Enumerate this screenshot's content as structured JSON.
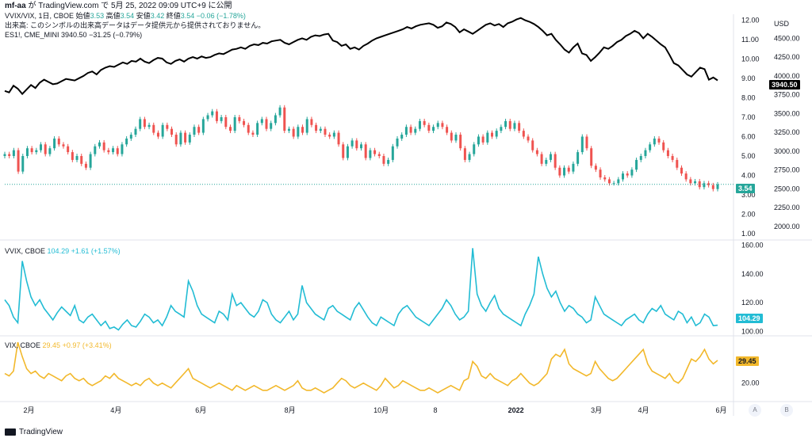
{
  "header": {
    "author": "mf-aa",
    "published": "が TradingView.com で 5月 25, 2022 09:09 UTC+9 に公開"
  },
  "panes": {
    "main": {
      "legend1": {
        "sym": "VVIX/VIX, 1日, CBOE",
        "o_lbl": "始値",
        "o": "3.53",
        "h_lbl": "高値",
        "h": "3.54",
        "l_lbl": "安値",
        "l": "3.42",
        "c_lbl": "終値",
        "c": "3.54",
        "chg": "−0.06 (−1.78%)"
      },
      "legend2": "出来高: このシンボルの出来高データはデータ提供元から提供されておりません。",
      "legend3": {
        "sym": "ES1!, CME_MINI",
        "val": "3940.50",
        "chg": "−31.25 (−0.79%)"
      }
    },
    "vvix": {
      "sym": "VVIX, CBOE",
      "val": "104.29",
      "chg": "+1.61 (+1.57%)"
    },
    "vix": {
      "sym": "VIX, CBOE",
      "val": "29.45",
      "chg": "+0.97 (+3.41%)"
    }
  },
  "currency": "USD",
  "badges": {
    "es": "3940.50",
    "ratio": "3.54",
    "vvix": "104.29",
    "vix": "29.45"
  },
  "colors": {
    "up": "#26a69a",
    "down": "#ef5350",
    "es": "#000000",
    "vvix": "#22bcd4",
    "vix": "#f2b82b",
    "ratio_line": "#26a69a"
  },
  "footer": "TradingView",
  "buttons": {
    "a": "A",
    "b": "B"
  },
  "chart_data": [
    {
      "type": "candlestick",
      "title": "VVIX/VIX, 1日, CBOE",
      "x_ticks": [
        "2月",
        "4月",
        "6月",
        "8月",
        "10月",
        "8",
        "2022",
        "3月",
        "4月",
        "6月"
      ],
      "y_ticks_left_scale": [
        "12.00",
        "11.00",
        "10.00",
        "9.00",
        "8.00",
        "7.00",
        "6.00",
        "5.00",
        "4.00",
        "3.00",
        "2.00",
        "1.00"
      ],
      "ylim": [
        0.8,
        12.3
      ],
      "close": [
        5.1,
        5.0,
        5.3,
        4.2,
        5.0,
        5.4,
        5.2,
        5.3,
        5.6,
        5.1,
        5.4,
        5.9,
        5.6,
        5.5,
        5.2,
        4.8,
        5.0,
        4.6,
        4.4,
        5.1,
        5.5,
        5.7,
        5.3,
        5.2,
        5.4,
        5.1,
        5.6,
        5.9,
        6.1,
        6.4,
        6.9,
        6.5,
        6.6,
        6.2,
        6.0,
        6.6,
        6.4,
        6.1,
        5.6,
        6.2,
        5.7,
        6.1,
        6.5,
        6.2,
        6.9,
        7.1,
        7.3,
        6.8,
        7.0,
        6.5,
        6.3,
        7.0,
        6.8,
        6.6,
        6.2,
        6.1,
        6.7,
        6.9,
        6.4,
        6.7,
        7.1,
        7.5,
        6.3,
        6.4,
        6.0,
        6.5,
        6.2,
        6.9,
        6.6,
        6.3,
        6.4,
        6.1,
        6.0,
        6.2,
        5.6,
        4.9,
        5.5,
        5.8,
        5.4,
        5.6,
        4.9,
        5.3,
        5.1,
        5.0,
        4.6,
        4.8,
        5.5,
        5.9,
        6.1,
        6.5,
        6.2,
        6.4,
        6.8,
        6.6,
        6.3,
        6.5,
        6.7,
        6.5,
        6.2,
        5.8,
        6.1,
        5.4,
        4.8,
        5.1,
        5.6,
        6.0,
        5.7,
        6.2,
        6.0,
        6.3,
        6.5,
        6.8,
        6.4,
        6.7,
        6.3,
        6.0,
        5.8,
        5.3,
        5.1,
        4.6,
        4.8,
        5.1,
        4.4,
        4.0,
        4.4,
        4.2,
        4.6,
        5.2,
        6.0,
        5.4,
        4.5,
        4.3,
        3.9,
        3.8,
        3.6,
        3.6,
        3.8,
        4.1,
        4.0,
        4.3,
        4.8,
        5.0,
        5.3,
        5.6,
        5.9,
        5.7,
        5.3,
        5.0,
        4.8,
        4.4,
        4.1,
        3.8,
        3.6,
        3.7,
        3.4,
        3.6,
        3.5,
        3.3,
        3.54
      ],
      "ohlc_last": {
        "open": 3.53,
        "high": 3.54,
        "low": 3.42,
        "close": 3.54
      }
    },
    {
      "type": "line",
      "name": "ES1!, CME_MINI",
      "y_ticks": [
        "4500.00",
        "4250.00",
        "4000.00",
        "3750.00",
        "3500.00",
        "3250.00",
        "3000.00",
        "2750.00",
        "2500.00",
        "2250.00",
        "2000.00"
      ],
      "ylim": [
        1850,
        4820
      ],
      "values": [
        3800,
        3780,
        3870,
        3830,
        3760,
        3820,
        3880,
        3840,
        3910,
        3950,
        3920,
        3890,
        3900,
        3930,
        3960,
        3950,
        3940,
        3970,
        4000,
        4040,
        4060,
        4020,
        4080,
        4110,
        4130,
        4120,
        4150,
        4180,
        4160,
        4200,
        4190,
        4230,
        4190,
        4170,
        4210,
        4240,
        4230,
        4180,
        4160,
        4200,
        4220,
        4190,
        4230,
        4250,
        4230,
        4260,
        4240,
        4250,
        4280,
        4300,
        4290,
        4320,
        4350,
        4360,
        4380,
        4360,
        4400,
        4420,
        4410,
        4440,
        4430,
        4460,
        4470,
        4480,
        4440,
        4420,
        4450,
        4480,
        4500,
        4480,
        4520,
        4540,
        4530,
        4550,
        4560,
        4470,
        4450,
        4400,
        4420,
        4360,
        4380,
        4350,
        4400,
        4430,
        4470,
        4500,
        4520,
        4540,
        4560,
        4580,
        4600,
        4620,
        4650,
        4630,
        4660,
        4680,
        4690,
        4700,
        4680,
        4640,
        4660,
        4710,
        4690,
        4650,
        4580,
        4620,
        4590,
        4560,
        4600,
        4640,
        4680,
        4700,
        4670,
        4690,
        4650,
        4700,
        4720,
        4750,
        4770,
        4740,
        4720,
        4690,
        4650,
        4600,
        4540,
        4560,
        4480,
        4420,
        4350,
        4310,
        4380,
        4430,
        4300,
        4280,
        4200,
        4250,
        4310,
        4380,
        4360,
        4400,
        4450,
        4480,
        4530,
        4560,
        4600,
        4570,
        4500,
        4560,
        4520,
        4470,
        4420,
        4380,
        4280,
        4170,
        4140,
        4080,
        4020,
        3990,
        4050,
        4110,
        4090,
        3950,
        3980,
        3940.5
      ]
    },
    {
      "type": "line",
      "name": "VVIX, CBOE",
      "y_ticks": [
        "160.00",
        "140.00",
        "120.00",
        "100.00"
      ],
      "ylim": [
        98,
        162
      ],
      "values": [
        122,
        118,
        110,
        106,
        149,
        135,
        124,
        118,
        122,
        116,
        112,
        108,
        113,
        117,
        114,
        111,
        118,
        108,
        106,
        110,
        112,
        108,
        104,
        107,
        102,
        103,
        101,
        105,
        108,
        104,
        103,
        107,
        112,
        110,
        106,
        108,
        104,
        110,
        118,
        114,
        112,
        110,
        135,
        128,
        118,
        112,
        110,
        108,
        106,
        114,
        112,
        108,
        126,
        118,
        120,
        116,
        112,
        110,
        114,
        122,
        120,
        112,
        108,
        106,
        110,
        114,
        108,
        112,
        132,
        120,
        116,
        112,
        110,
        108,
        116,
        118,
        114,
        112,
        110,
        108,
        116,
        120,
        115,
        110,
        106,
        104,
        110,
        108,
        106,
        104,
        112,
        116,
        118,
        114,
        110,
        108,
        106,
        104,
        108,
        112,
        116,
        122,
        118,
        112,
        108,
        110,
        114,
        158,
        126,
        118,
        114,
        120,
        125,
        116,
        112,
        110,
        108,
        106,
        104,
        112,
        118,
        126,
        152,
        140,
        130,
        124,
        128,
        120,
        114,
        118,
        116,
        112,
        110,
        106,
        108,
        124,
        118,
        112,
        110,
        108,
        106,
        104,
        108,
        110,
        112,
        108,
        106,
        112,
        116,
        114,
        118,
        112,
        110,
        108,
        114,
        112,
        106,
        110,
        104,
        106,
        112,
        110,
        104,
        104.29
      ]
    },
    {
      "type": "line",
      "name": "VIX, CBOE",
      "y_ticks": [
        "20.00"
      ],
      "ylim": [
        13,
        39
      ],
      "values": [
        24,
        23,
        25,
        37,
        31,
        26,
        24,
        25,
        23,
        22,
        24,
        23,
        22,
        21,
        23,
        24,
        22,
        21,
        22,
        20,
        19,
        20,
        21,
        23,
        22,
        24,
        22,
        21,
        20,
        19,
        20,
        19,
        21,
        22,
        20,
        19,
        20,
        19,
        18,
        20,
        22,
        24,
        26,
        22,
        21,
        20,
        19,
        18,
        19,
        20,
        19,
        18,
        17,
        19,
        18,
        17,
        18,
        19,
        18,
        17,
        17,
        18,
        19,
        18,
        17,
        18,
        19,
        21,
        18,
        17,
        17,
        18,
        17,
        16,
        17,
        18,
        20,
        22,
        21,
        19,
        18,
        19,
        20,
        19,
        18,
        17,
        19,
        22,
        20,
        18,
        19,
        21,
        20,
        19,
        18,
        17,
        17,
        18,
        17,
        16,
        17,
        18,
        19,
        18,
        17,
        21,
        22,
        29,
        27,
        23,
        22,
        24,
        22,
        21,
        20,
        19,
        21,
        22,
        24,
        22,
        20,
        19,
        20,
        22,
        24,
        30,
        32,
        31,
        34,
        28,
        26,
        25,
        24,
        23,
        24,
        29,
        26,
        24,
        22,
        21,
        22,
        24,
        26,
        28,
        30,
        32,
        34,
        28,
        25,
        24,
        23,
        22,
        24,
        21,
        20,
        22,
        26,
        30,
        29,
        31,
        34,
        30,
        28,
        29.45
      ]
    }
  ]
}
